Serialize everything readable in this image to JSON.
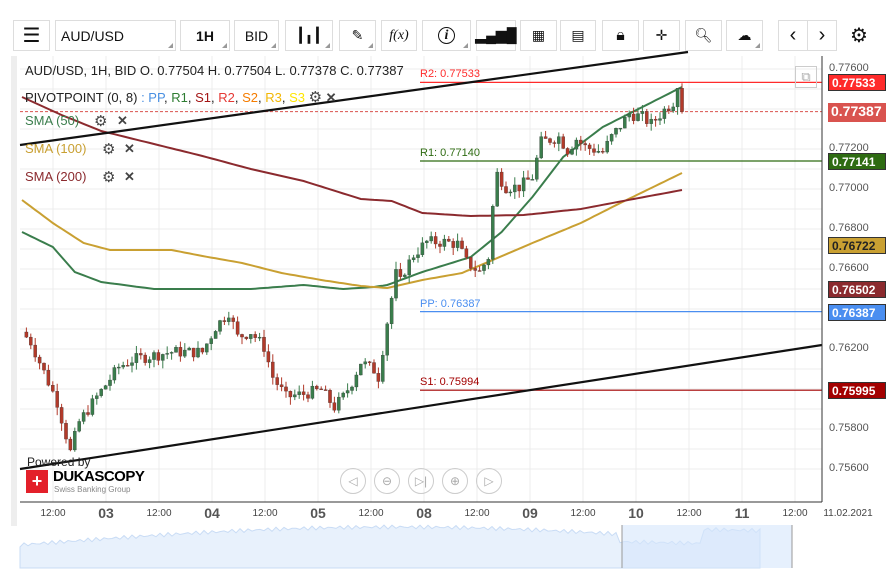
{
  "toolbar": {
    "symbol": "AUD/USD",
    "timeframe": "1H",
    "side": "BID",
    "fx_label": "f(x)",
    "info_label": "i"
  },
  "legend": {
    "ohlc": "AUD/USD, 1H, BID   O. 0.77504 H. 0.77504 L. 0.77378 C. 0.77387",
    "pivot_name": "PIVOTPOINT (0, 8)",
    "pivot_prefix": " : ",
    "pivot_items": [
      {
        "t": "PP",
        "c": "#4a90e2"
      },
      {
        "t": "R1",
        "c": "#2e7d32"
      },
      {
        "t": "S1",
        "c": "#a31515"
      },
      {
        "t": "R2",
        "c": "#e53935"
      },
      {
        "t": "S2",
        "c": "#f57c00"
      },
      {
        "t": "R3",
        "c": "#f2b705"
      },
      {
        "t": "S3",
        "c": "#ffe600"
      }
    ],
    "sma": [
      {
        "label": "SMA (50)",
        "color": "#3a7d4c"
      },
      {
        "label": "SMA (100)",
        "color": "#c9a032"
      },
      {
        "label": "SMA (200)",
        "color": "#8b2a2e"
      }
    ]
  },
  "pivots": [
    {
      "label": "R2: 0.77533",
      "value": 0.77533,
      "tag": "0.77533",
      "color": "#ff2b2b"
    },
    {
      "label": "R1: 0.77140",
      "value": 0.7714,
      "tag": "0.77141",
      "color": "#2e6b12"
    },
    {
      "label": "PP: 0.76387",
      "value": 0.76387,
      "tag": "0.76387",
      "color": "#4a8ef0"
    },
    {
      "label": "S1: 0.75994",
      "value": 0.75994,
      "tag": "0.75995",
      "color": "#a30000"
    }
  ],
  "last_price": {
    "value": 0.77387,
    "tag": "0.77387",
    "color": "#d9534f"
  },
  "sma_tags": [
    {
      "tag": "0.76722",
      "color": "#c9a032",
      "value": 0.76722
    },
    {
      "tag": "0.76502",
      "color": "#8b2a2e",
      "value": 0.76502
    }
  ],
  "y_axis": [
    "0.77600",
    "0.77200",
    "0.77000",
    "0.76800",
    "0.76600",
    "0.76200",
    "0.75800",
    "0.75600"
  ],
  "x_axis": [
    {
      "t": "12:00",
      "d": false
    },
    {
      "t": "03",
      "d": true
    },
    {
      "t": "12:00",
      "d": false
    },
    {
      "t": "04",
      "d": true
    },
    {
      "t": "12:00",
      "d": false
    },
    {
      "t": "05",
      "d": true
    },
    {
      "t": "12:00",
      "d": false
    },
    {
      "t": "08",
      "d": true
    },
    {
      "t": "12:00",
      "d": false
    },
    {
      "t": "09",
      "d": true
    },
    {
      "t": "12:00",
      "d": false
    },
    {
      "t": "10",
      "d": true
    },
    {
      "t": "12:00",
      "d": false
    },
    {
      "t": "11",
      "d": true
    },
    {
      "t": "12:00",
      "d": false
    },
    {
      "t": "11.02.2021",
      "d": false
    }
  ],
  "branding": {
    "powered": "Powered by",
    "name": "DUKASCOPY",
    "tagline": "Swiss Banking Group"
  },
  "chart_data": {
    "type": "candlestick",
    "price_path": [
      [
        0,
        0.76285
      ],
      [
        2,
        0.76235
      ],
      [
        5,
        0.76085
      ],
      [
        8,
        0.75935
      ],
      [
        11,
        0.75685
      ],
      [
        13,
        0.75835
      ],
      [
        17,
        0.7596
      ],
      [
        22,
        0.7611
      ],
      [
        25,
        0.76145
      ],
      [
        28,
        0.7616
      ],
      [
        34,
        0.76185
      ],
      [
        41,
        0.76185
      ],
      [
        44,
        0.7631
      ],
      [
        47,
        0.76385
      ],
      [
        49,
        0.7626
      ],
      [
        52,
        0.76285
      ],
      [
        55,
        0.7621
      ],
      [
        57,
        0.7606
      ],
      [
        60,
        0.7596
      ],
      [
        64,
        0.75975
      ],
      [
        68,
        0.75995
      ],
      [
        71,
        0.7591
      ],
      [
        73,
        0.7596
      ],
      [
        75,
        0.76035
      ],
      [
        77,
        0.76135
      ],
      [
        80,
        0.76095
      ],
      [
        81,
        0.7606
      ],
      [
        83,
        0.76335
      ],
      [
        85,
        0.76575
      ],
      [
        86,
        0.76535
      ],
      [
        87,
        0.76595
      ],
      [
        89,
        0.7667
      ],
      [
        92,
        0.76735
      ],
      [
        96,
        0.76735
      ],
      [
        99,
        0.76725
      ],
      [
        101,
        0.76635
      ],
      [
        104,
        0.76585
      ],
      [
        106,
        0.7666
      ],
      [
        107,
        0.7691
      ],
      [
        108,
        0.77075
      ],
      [
        110,
        0.7701
      ],
      [
        113,
        0.7701
      ],
      [
        116,
        0.7706
      ],
      [
        118,
        0.77235
      ],
      [
        122,
        0.7726
      ],
      [
        124,
        0.77195
      ],
      [
        126,
        0.7725
      ],
      [
        128,
        0.7721
      ],
      [
        132,
        0.77185
      ],
      [
        134,
        0.7726
      ],
      [
        138,
        0.77375
      ],
      [
        141,
        0.7736
      ],
      [
        143,
        0.77325
      ],
      [
        146,
        0.77395
      ],
      [
        148,
        0.77435
      ],
      [
        149,
        0.775
      ],
      [
        150,
        0.77387
      ]
    ],
    "sma50": [
      [
        0,
        0.76785
      ],
      [
        7,
        0.7671
      ],
      [
        12,
        0.76585
      ],
      [
        18,
        0.76535
      ],
      [
        30,
        0.765
      ],
      [
        41,
        0.765
      ],
      [
        52,
        0.765
      ],
      [
        64,
        0.7652
      ],
      [
        73,
        0.765
      ],
      [
        80,
        0.7651
      ],
      [
        83,
        0.7652
      ],
      [
        91,
        0.76585
      ],
      [
        102,
        0.7666
      ],
      [
        109,
        0.76785
      ],
      [
        116,
        0.7696
      ],
      [
        123,
        0.7716
      ],
      [
        132,
        0.7731
      ],
      [
        141,
        0.7741
      ],
      [
        150,
        0.7751
      ]
    ],
    "sma100": [
      [
        0,
        0.76945
      ],
      [
        7,
        0.7683
      ],
      [
        14,
        0.7673
      ],
      [
        20,
        0.76695
      ],
      [
        34,
        0.76695
      ],
      [
        41,
        0.76665
      ],
      [
        50,
        0.7663
      ],
      [
        59,
        0.7658
      ],
      [
        68,
        0.76545
      ],
      [
        77,
        0.76515
      ],
      [
        83,
        0.76505
      ],
      [
        91,
        0.76545
      ],
      [
        100,
        0.7658
      ],
      [
        107,
        0.76645
      ],
      [
        116,
        0.7673
      ],
      [
        127,
        0.7683
      ],
      [
        136,
        0.7693
      ],
      [
        150,
        0.7708
      ]
    ],
    "sma200": [
      [
        0,
        0.7746
      ],
      [
        9,
        0.7737
      ],
      [
        18,
        0.7729
      ],
      [
        30,
        0.77225
      ],
      [
        41,
        0.77165
      ],
      [
        52,
        0.771
      ],
      [
        64,
        0.7704
      ],
      [
        77,
        0.7695
      ],
      [
        84,
        0.7694
      ],
      [
        91,
        0.7688
      ],
      [
        102,
        0.76865
      ],
      [
        114,
        0.7687
      ],
      [
        127,
        0.769
      ],
      [
        139,
        0.7695
      ],
      [
        150,
        0.76995
      ]
    ],
    "ylim": [
      0.7552,
      0.7782
    ]
  }
}
